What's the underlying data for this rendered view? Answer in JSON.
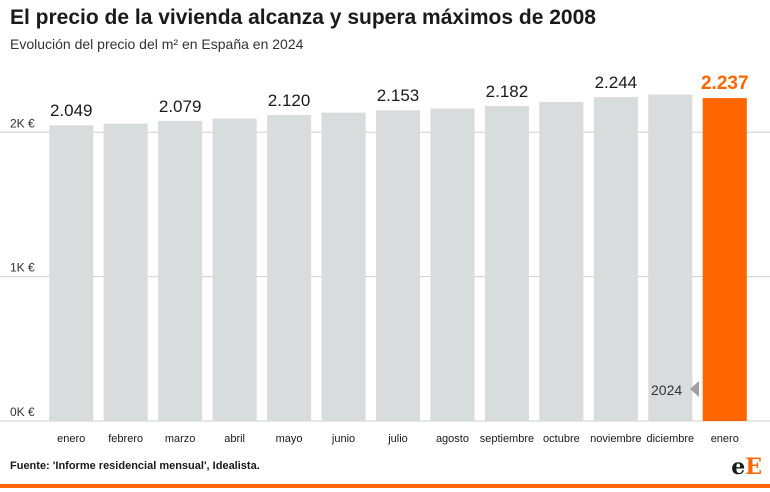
{
  "header": {
    "title": "El precio de la vivienda alcanza y supera máximos de 2008",
    "subtitle": "Evolución del precio del m² en España en 2024"
  },
  "footer": {
    "source": "Fuente: 'Informe residencial mensual', Idealista.",
    "logo_main": "e",
    "logo_accent": "E"
  },
  "annotation": {
    "text": "2024"
  },
  "colors": {
    "bar": "#d9dcdd",
    "highlight": "#ff6600",
    "grid": "#cfcfcf",
    "text": "#1a1a1a"
  },
  "chart_data": {
    "type": "bar",
    "title": "El precio de la vivienda alcanza y supera máximos de 2008",
    "subtitle": "Evolución del precio del m² en España en 2024",
    "categories": [
      "enero",
      "febrero",
      "marzo",
      "abril",
      "mayo",
      "junio",
      "julio",
      "agosto",
      "septiembre",
      "octubre",
      "noviembre",
      "diciembre",
      "enero"
    ],
    "values": [
      2049,
      2060,
      2079,
      2095,
      2120,
      2136,
      2153,
      2165,
      2182,
      2210,
      2244,
      2262,
      2237
    ],
    "data_labels": [
      "2.049",
      "",
      "2.079",
      "",
      "2.120",
      "",
      "2.153",
      "",
      "2.182",
      "",
      "2.244",
      "",
      "2.237"
    ],
    "highlight_index": 12,
    "yticks": [
      0,
      1000,
      2000
    ],
    "ytick_labels": [
      "0K €",
      "1K €",
      "2K €"
    ],
    "ylim": [
      0,
      2300
    ],
    "grid": true,
    "xlabel": "",
    "ylabel": ""
  }
}
